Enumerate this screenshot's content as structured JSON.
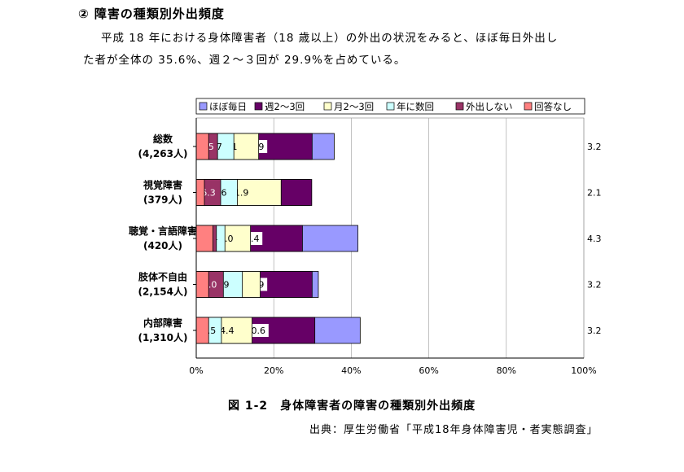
{
  "heading": "② 障害の種類別外出頻度",
  "paragraph": [
    "平成 18 年における身体障害者（18 歳以上）の外出の状況をみると、ほぼ毎日外出し",
    "た者が全体の 35.6%、週２～３回が 29.9%を占めている。"
  ],
  "caption": "図 1-2　身体障害者の障害の種類別外出頻度",
  "source": "出典：厚生労働省「平成18年身体障害児・者実態調査」",
  "colors": {
    "series": [
      "#9999ff",
      "#660066",
      "#ffffcc",
      "#ccffff",
      "#993366",
      "#ff8080"
    ]
  },
  "chart_data": {
    "type": "bar",
    "orientation": "horizontal",
    "stacked": true,
    "percent": true,
    "categories": [
      {
        "name": "総数",
        "count": "(4,263人)"
      },
      {
        "name": "視覚障害",
        "count": "(379人)"
      },
      {
        "name": "聴覚・言語障害",
        "count": "(420人)"
      },
      {
        "name": "肢体不自由",
        "count": "(2,154人)"
      },
      {
        "name": "内部障害",
        "count": "(1,310人)"
      }
    ],
    "series": [
      {
        "name": "ほぼ毎日",
        "values": [
          35.6,
          29.3,
          41.7,
          31.5,
          42.3
        ]
      },
      {
        "name": "週2～3回",
        "values": [
          29.9,
          29.8,
          27.4,
          29.9,
          30.6
        ]
      },
      {
        "name": "月2～3回",
        "values": [
          16.1,
          21.9,
          14.0,
          16.5,
          14.4
        ]
      },
      {
        "name": "年に数回",
        "values": [
          9.7,
          10.6,
          7.4,
          11.9,
          6.5
        ]
      },
      {
        "name": "外出しない",
        "values": [
          5.5,
          6.3,
          5.2,
          7.0,
          3.0
        ]
      },
      {
        "name": "回答なし",
        "values": [
          3.2,
          2.1,
          4.3,
          3.2,
          3.2
        ]
      }
    ],
    "xticks": [
      "0%",
      "20%",
      "40%",
      "60%",
      "80%",
      "100%"
    ],
    "xlim": [
      0,
      100
    ],
    "legend": "top",
    "grid": true
  }
}
